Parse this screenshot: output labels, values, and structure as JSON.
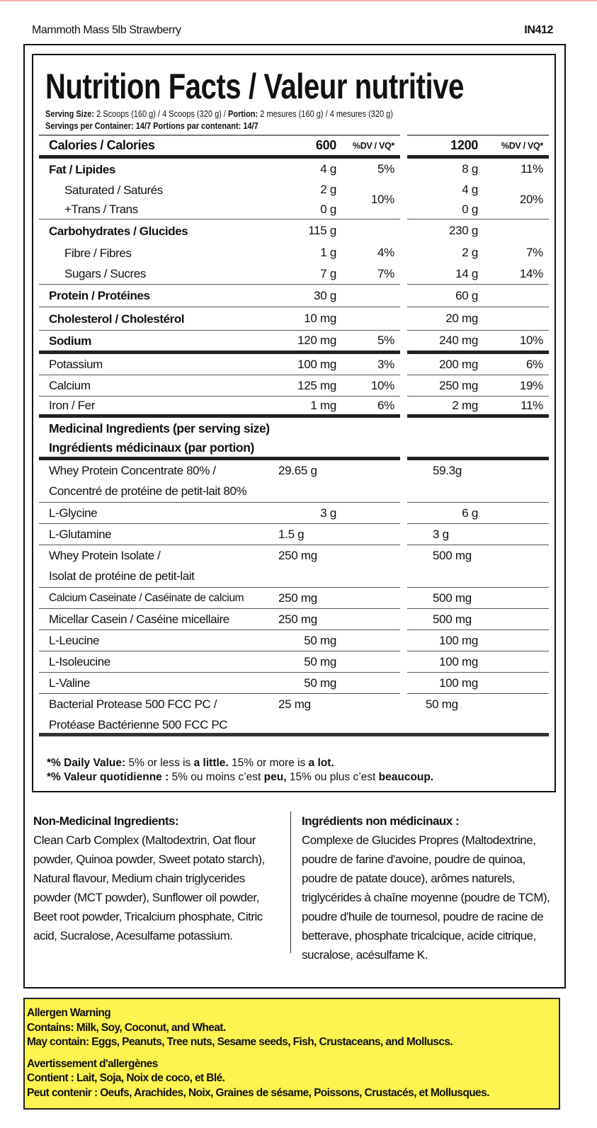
{
  "product_name": "Mammoth Mass 5lb Strawberry",
  "product_code": "IN412",
  "title": "Nutrition Facts / Valeur nutritive",
  "serving": {
    "size_label": "Serving Size:",
    "size_value": "2 Scoops (160 g) / 4 Scoops (320 g)",
    "portion_label": "Portion:",
    "portion_value": "2 mesures (160 g) / 4 mesures (320 g)",
    "per_container": "Servings per Container: 14/7  Portions par contenant: 14/7"
  },
  "header_row": {
    "label": "Calories / Calories",
    "v1": "600",
    "d1": "%DV / VQ*",
    "v2": "1200",
    "d2": "%DV / VQ*"
  },
  "rows": [
    {
      "label": "Fat / Lipides",
      "v1": "4 g",
      "d1": "5%",
      "v2": "8 g",
      "d2": "11%"
    },
    {
      "label": "Saturated / Saturés",
      "v1": "2 g",
      "d1": "10%",
      "v2": "4 g",
      "d2": "20%"
    },
    {
      "label": "+Trans / Trans",
      "v1": "0 g",
      "d1": "",
      "v2": "0 g",
      "d2": ""
    },
    {
      "label": "Carbohydrates / Glucides",
      "v1": "115 g",
      "d1": "",
      "v2": "230 g",
      "d2": ""
    },
    {
      "label": "Fibre / Fibres",
      "v1": "1 g",
      "d1": "4%",
      "v2": "2 g",
      "d2": "7%"
    },
    {
      "label": "Sugars / Sucres",
      "v1": "7 g",
      "d1": "7%",
      "v2": "14 g",
      "d2": "14%"
    },
    {
      "label": "Protein / Protéines",
      "v1": "30 g",
      "d1": "",
      "v2": "60 g",
      "d2": ""
    },
    {
      "label": "Cholesterol / Cholestérol",
      "v1": "10 mg",
      "d1": "",
      "v2": "20 mg",
      "d2": ""
    },
    {
      "label": "Sodium",
      "v1": "120 mg",
      "d1": "5%",
      "v2": "240 mg",
      "d2": "10%"
    },
    {
      "label": "Potassium",
      "v1": "100 mg",
      "d1": "3%",
      "v2": "200 mg",
      "d2": "6%"
    },
    {
      "label": "Calcium",
      "v1": "125 mg",
      "d1": "10%",
      "v2": "250 mg",
      "d2": "19%"
    },
    {
      "label": "Iron / Fer",
      "v1": "1 mg",
      "d1": "6%",
      "v2": "2 mg",
      "d2": "11%"
    }
  ],
  "medicinal_header": [
    "Medicinal Ingredients (per serving size)",
    "Ingrédients médicinaux (par portion)"
  ],
  "medicinal": [
    {
      "label": "Whey Protein Concentrate 80% /",
      "label2": "Concentré de protéine de petit-lait 80%",
      "v1": "29.65 g",
      "v2": "59.3g"
    },
    {
      "label": "L-Glycine",
      "v1": "3 g",
      "v2": "6 g"
    },
    {
      "label": "L-Glutamine",
      "v1": "1.5 g",
      "v2": "3 g"
    },
    {
      "label": "Whey Protein Isolate /",
      "label2": "Isolat de protéine de petit-lait",
      "v1": "250 mg",
      "v2": "500 mg"
    },
    {
      "label": "Calcium Caseinate / Caséinate de calcium",
      "v1": "250 mg",
      "v2": "500 mg"
    },
    {
      "label": "Micellar Casein / Caséine micellaire",
      "v1": "250 mg",
      "v2": "500 mg"
    },
    {
      "label": "L-Leucine",
      "v1": "50 mg",
      "v2": "100 mg"
    },
    {
      "label": "L-Isoleucine",
      "v1": "50 mg",
      "v2": "100 mg"
    },
    {
      "label": "L-Valine",
      "v1": "50 mg",
      "v2": "100 mg"
    },
    {
      "label": "Bacterial Protease 500 FCC PC /",
      "label2": "Protéase Bactérienne 500 FCC PC",
      "v1": "25 mg",
      "v2": "50 mg"
    }
  ],
  "footnote": {
    "en_a": "*% Daily Value:",
    "en_b": " 5% or less is ",
    "en_c": "a little.",
    "en_d": " 15% or more is ",
    "en_e": "a lot.",
    "fr_a": "*% Valeur quotidienne :",
    "fr_b": " 5% ou moins c’est ",
    "fr_c": "peu,",
    "fr_d": " 15% ou plus c’est ",
    "fr_e": "beaucoup."
  },
  "non_medicinal": {
    "en_title": "Non-Medicinal Ingredients:",
    "en_text": "Clean Carb Complex (Maltodextrin, Oat flour powder, Quinoa powder, Sweet potato starch), Natural flavour, Medium chain triglycerides powder (MCT powder), Sunflower oil powder, Beet root powder, Tricalcium phosphate, Citric acid, Sucralose, Acesulfame potassium.",
    "fr_title": "Ingrédients non médicinaux :",
    "fr_text": "Complexe de Glucides Propres (Maltodextrine, poudre de farine d'avoine, poudre de quinoa, poudre de patate douce), arômes naturels, triglycérides à chaîne moyenne (poudre de TCM), poudre d'huile de tournesol, poudre de racine de betterave, phosphate tricalcique, acide citrique, sucralose, acésulfame K."
  },
  "allergen": {
    "title_en": "Allergen Warning",
    "contains_en": "Contains: Milk, Soy, Coconut, and Wheat.",
    "may_en": "May contain: Eggs, Peanuts, Tree nuts, Sesame seeds, Fish, Crustaceans, and Molluscs.",
    "title_fr": "Avertissement d'allergènes",
    "contains_fr": "Contient : Lait, Soja, Noix de coco, et Blé.",
    "may_fr": "Peut contenir : Oeufs, Arachides, Noix, Graines de sésame, Poissons, Crustacés, et Mollusques.",
    "background": "#fff34f"
  }
}
